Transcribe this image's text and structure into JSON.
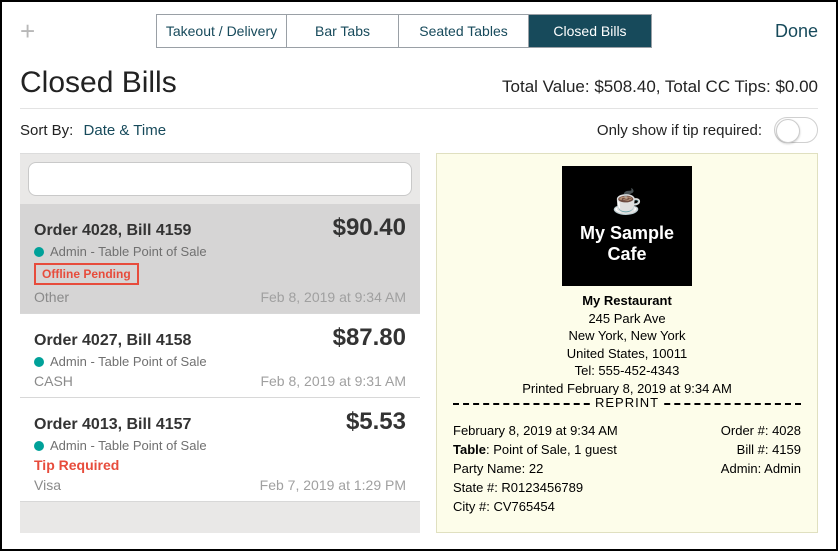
{
  "topbar": {
    "tabs": [
      "Takeout / Delivery",
      "Bar Tabs",
      "Seated Tables",
      "Closed Bills"
    ],
    "activeIndex": 3,
    "done": "Done"
  },
  "header": {
    "title": "Closed Bills",
    "totals": "Total Value: $508.40, Total CC Tips: $0.00"
  },
  "controls": {
    "sortLabel": "Sort By:",
    "sortValue": "Date & Time",
    "tipFilterLabel": "Only show if tip required:",
    "tipFilterOn": false
  },
  "search": {
    "placeholder": ""
  },
  "bills": [
    {
      "title": "Order 4028, Bill 4159",
      "amount": "$90.40",
      "sub": "Admin - Table Point of Sale",
      "badge": "Offline Pending",
      "payment": "Other",
      "time": "Feb 8, 2019 at 9:34 AM",
      "selected": true,
      "dotColor": "#00a199"
    },
    {
      "title": "Order 4027, Bill 4158",
      "amount": "$87.80",
      "sub": "Admin - Table Point of Sale",
      "payment": "CASH",
      "time": "Feb 8, 2019 at 9:31 AM",
      "dotColor": "#00a199"
    },
    {
      "title": "Order 4013, Bill 4157",
      "amount": "$5.53",
      "sub": "Admin - Table Point of Sale",
      "tipRequired": "Tip Required",
      "payment": "Visa",
      "time": "Feb 7, 2019 at 1:29 PM",
      "dotColor": "#00a199"
    }
  ],
  "receipt": {
    "logoLine1": "My Sample",
    "logoLine2": "Cafe",
    "name": "My Restaurant",
    "addr1": "245 Park Ave",
    "addr2": "New York, New York",
    "addr3": "United States, 10011",
    "tel": "Tel: 555-452-4343",
    "printed": "Printed February 8, 2019 at 9:34 AM",
    "reprint": "REPRINT",
    "left": {
      "dt": "February 8, 2019 at 9:34 AM",
      "tableLabel": "Table",
      "tableVal": ": Point of Sale, 1 guest",
      "party": "Party Name: 22",
      "state": "State #: R0123456789",
      "city": "City #: CV765454"
    },
    "right": {
      "order": "Order #: 4028",
      "bill": "Bill #: 4159",
      "admin": "Admin: Admin"
    }
  },
  "colors": {
    "brand": "#174a5b",
    "accent": "#00a199",
    "danger": "#e74c3c",
    "receiptBg": "#fdfdea"
  }
}
